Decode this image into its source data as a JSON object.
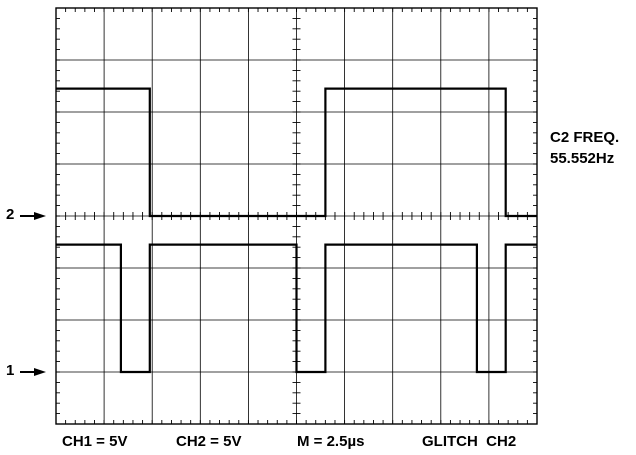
{
  "chart_data": {
    "type": "line",
    "title": "",
    "grid": true,
    "divisions": {
      "horizontal": 10,
      "vertical": 8
    },
    "timebase": "M = 2.5µs",
    "trigger": "GLITCH  CH2",
    "measurement": {
      "label": "C2 FREQ.",
      "value": "55.552Hz"
    },
    "channels": [
      {
        "name": "CH1",
        "scale": "CH1 = 5V",
        "marker": "1"
      },
      {
        "name": "CH2",
        "scale": "CH2 = 5V",
        "marker": "2"
      }
    ],
    "series": [
      {
        "name": "CH2",
        "unit": "div",
        "x": [
          0,
          1.95,
          1.95,
          5.6,
          5.6,
          9.35,
          9.35,
          10
        ],
        "y": [
          2.45,
          2.45,
          0,
          0,
          2.45,
          2.45,
          0,
          0
        ]
      },
      {
        "name": "CH1",
        "unit": "div",
        "x": [
          0,
          1.35,
          1.35,
          1.95,
          1.95,
          5.0,
          5.0,
          5.6,
          5.6,
          8.75,
          8.75,
          9.35,
          9.35,
          10
        ],
        "y": [
          2.45,
          2.45,
          0,
          0,
          2.45,
          2.45,
          0,
          0,
          2.45,
          2.45,
          0,
          0,
          2.45,
          2.45
        ]
      }
    ],
    "ground_levels_div": {
      "CH2": 4.0,
      "CH1": 1.0
    }
  }
}
